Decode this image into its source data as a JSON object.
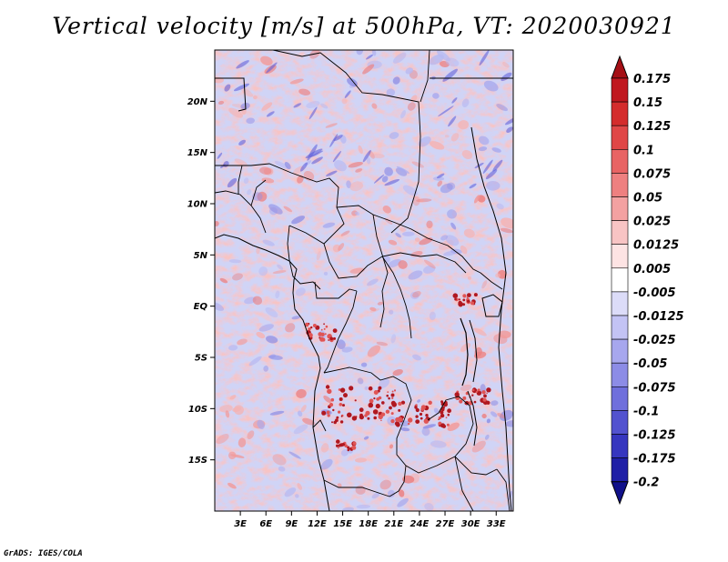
{
  "title": "Vertical velocity [m/s] at 500hPa, VT: 2020030921",
  "credit": "GrADS: IGES/COLA",
  "map": {
    "region": "Central Africa",
    "lon_range": [
      0,
      35
    ],
    "lat_range": [
      -20,
      25
    ],
    "lat_ticks": [
      {
        "lat": 20,
        "label": "20N"
      },
      {
        "lat": 15,
        "label": "15N"
      },
      {
        "lat": 10,
        "label": "10N"
      },
      {
        "lat": 5,
        "label": "5N"
      },
      {
        "lat": 0,
        "label": "EQ"
      },
      {
        "lat": -5,
        "label": "5S"
      },
      {
        "lat": -10,
        "label": "10S"
      },
      {
        "lat": -15,
        "label": "15S"
      }
    ],
    "lon_ticks": [
      {
        "lon": 3,
        "label": "3E"
      },
      {
        "lon": 6,
        "label": "6E"
      },
      {
        "lon": 9,
        "label": "9E"
      },
      {
        "lon": 12,
        "label": "12E"
      },
      {
        "lon": 15,
        "label": "15E"
      },
      {
        "lon": 18,
        "label": "18E"
      },
      {
        "lon": 21,
        "label": "21E"
      },
      {
        "lon": 24,
        "label": "24E"
      },
      {
        "lon": 27,
        "label": "27E"
      },
      {
        "lon": 30,
        "label": "30E"
      },
      {
        "lon": 33,
        "label": "33E"
      }
    ]
  },
  "colorbar": {
    "labels": [
      "0.175",
      "0.15",
      "0.125",
      "0.1",
      "0.075",
      "0.05",
      "0.025",
      "0.0125",
      "0.005",
      "-0.005",
      "-0.0125",
      "-0.025",
      "-0.05",
      "-0.075",
      "-0.1",
      "-0.125",
      "-0.175",
      "-0.2"
    ],
    "colors": [
      "#a50f15",
      "#c0181f",
      "#d42c2c",
      "#e04747",
      "#e86464",
      "#ee8080",
      "#f3a1a1",
      "#f8c4c4",
      "#fde3e3",
      "#ffffff",
      "#dcdcf8",
      "#c3c3f4",
      "#a7a7ee",
      "#8c8ce6",
      "#6f6fdc",
      "#5252cf",
      "#3636bf",
      "#1f1fa6",
      "#10108a"
    ]
  }
}
